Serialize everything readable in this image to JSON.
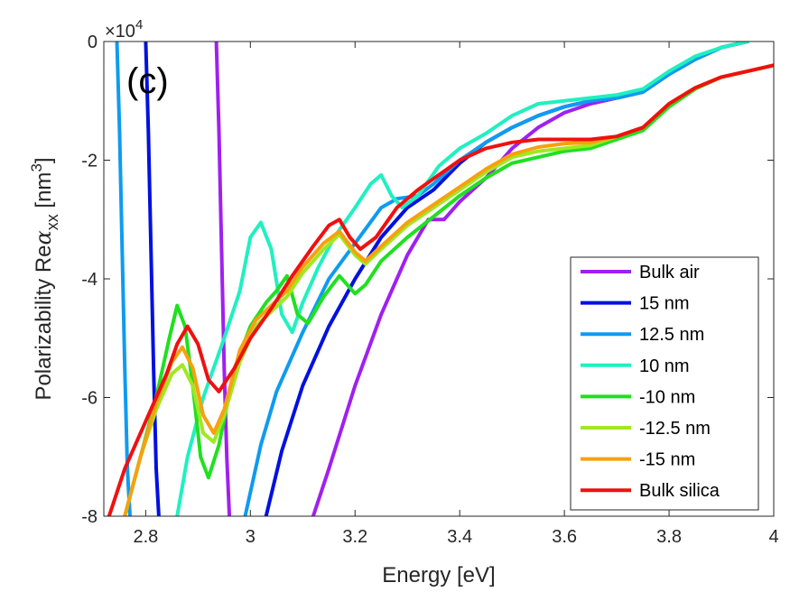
{
  "chart_data": {
    "type": "line",
    "panel_label": "(c)",
    "xlabel": "Energy [eV]",
    "ylabel_prefix": "Polarizability Re",
    "ylabel_symbol": "α",
    "ylabel_subscript": "xx",
    "ylabel_unit_open": " [nm",
    "ylabel_unit_power": "3",
    "ylabel_unit_close": "]",
    "y_exponent_base": "×10",
    "y_exponent_power": "4",
    "xlim": [
      2.72,
      4.0
    ],
    "ylim": [
      -8,
      0
    ],
    "x_ticks": [
      2.8,
      3.0,
      3.2,
      3.4,
      3.6,
      3.8,
      4.0
    ],
    "x_tick_labels": [
      "2.8",
      "3",
      "3.2",
      "3.4",
      "3.6",
      "3.8",
      "4"
    ],
    "y_ticks": [
      0,
      -2,
      -4,
      -6,
      -8
    ],
    "y_tick_labels": [
      "0",
      "-2",
      "-4",
      "-6",
      "-8"
    ],
    "y_scale_note": "values in units of 10^4 nm^3",
    "legend_position": "bottom-right",
    "series": [
      {
        "name": "Bulk air",
        "color": "#A020F0",
        "segments": [
          [
            [
              2.935,
              0.0
            ],
            [
              2.94,
              -1.5
            ],
            [
              2.945,
              -3.5
            ],
            [
              2.95,
              -5.5
            ],
            [
              2.955,
              -7.0
            ],
            [
              2.96,
              -8.0
            ]
          ],
          [
            [
              3.12,
              -8.0
            ],
            [
              3.15,
              -7.2
            ],
            [
              3.2,
              -5.8
            ],
            [
              3.25,
              -4.6
            ],
            [
              3.3,
              -3.6
            ],
            [
              3.34,
              -3.0
            ],
            [
              3.37,
              -3.0
            ],
            [
              3.4,
              -2.7
            ],
            [
              3.45,
              -2.3
            ],
            [
              3.5,
              -1.8
            ],
            [
              3.55,
              -1.45
            ],
            [
              3.6,
              -1.2
            ],
            [
              3.65,
              -1.05
            ],
            [
              3.7,
              -0.95
            ],
            [
              3.75,
              -0.85
            ],
            [
              3.8,
              -0.55
            ],
            [
              3.85,
              -0.3
            ],
            [
              3.9,
              -0.1
            ],
            [
              3.95,
              0.0
            ]
          ]
        ]
      },
      {
        "name": "15 nm",
        "color": "#0010E0",
        "segments": [
          [
            [
              2.8,
              0.0
            ],
            [
              2.805,
              -1.5
            ],
            [
              2.81,
              -3.5
            ],
            [
              2.815,
              -5.5
            ],
            [
              2.82,
              -7.2
            ],
            [
              2.825,
              -8.0
            ]
          ],
          [
            [
              3.03,
              -8.0
            ],
            [
              3.06,
              -6.9
            ],
            [
              3.1,
              -5.8
            ],
            [
              3.15,
              -4.8
            ],
            [
              3.2,
              -4.0
            ],
            [
              3.25,
              -3.3
            ],
            [
              3.3,
              -2.8
            ],
            [
              3.35,
              -2.5
            ],
            [
              3.4,
              -2.05
            ],
            [
              3.45,
              -1.7
            ],
            [
              3.5,
              -1.45
            ],
            [
              3.55,
              -1.25
            ],
            [
              3.6,
              -1.1
            ],
            [
              3.65,
              -1.0
            ],
            [
              3.7,
              -0.95
            ],
            [
              3.75,
              -0.85
            ],
            [
              3.8,
              -0.55
            ],
            [
              3.85,
              -0.3
            ],
            [
              3.9,
              -0.1
            ],
            [
              3.95,
              0.0
            ]
          ]
        ]
      },
      {
        "name": "12.5 nm",
        "color": "#0F9BF0",
        "segments": [
          [
            [
              2.745,
              0.0
            ],
            [
              2.75,
              -1.5
            ],
            [
              2.755,
              -3.5
            ],
            [
              2.76,
              -5.5
            ],
            [
              2.765,
              -7.2
            ],
            [
              2.77,
              -8.0
            ]
          ],
          [
            [
              2.99,
              -8.0
            ],
            [
              3.02,
              -6.8
            ],
            [
              3.05,
              -5.9
            ],
            [
              3.1,
              -4.9
            ],
            [
              3.15,
              -4.0
            ],
            [
              3.2,
              -3.4
            ],
            [
              3.25,
              -2.8
            ],
            [
              3.28,
              -2.65
            ],
            [
              3.32,
              -2.6
            ],
            [
              3.35,
              -2.4
            ],
            [
              3.4,
              -2.0
            ],
            [
              3.45,
              -1.7
            ],
            [
              3.5,
              -1.45
            ],
            [
              3.55,
              -1.25
            ],
            [
              3.6,
              -1.1
            ],
            [
              3.65,
              -1.0
            ],
            [
              3.7,
              -0.95
            ],
            [
              3.75,
              -0.85
            ],
            [
              3.8,
              -0.55
            ],
            [
              3.85,
              -0.3
            ],
            [
              3.9,
              -0.1
            ],
            [
              3.95,
              0.0
            ]
          ]
        ]
      },
      {
        "name": "10 nm",
        "color": "#20F0C0",
        "segments": [
          [
            [
              2.86,
              -8.0
            ],
            [
              2.88,
              -7.0
            ],
            [
              2.91,
              -6.0
            ],
            [
              2.95,
              -5.0
            ],
            [
              2.98,
              -4.2
            ],
            [
              3.0,
              -3.3
            ],
            [
              3.02,
              -3.05
            ],
            [
              3.04,
              -3.5
            ],
            [
              3.06,
              -4.6
            ],
            [
              3.08,
              -4.9
            ],
            [
              3.1,
              -4.4
            ],
            [
              3.13,
              -3.8
            ],
            [
              3.16,
              -3.3
            ],
            [
              3.2,
              -2.8
            ],
            [
              3.23,
              -2.4
            ],
            [
              3.25,
              -2.25
            ],
            [
              3.27,
              -2.6
            ],
            [
              3.29,
              -2.8
            ],
            [
              3.32,
              -2.6
            ],
            [
              3.36,
              -2.1
            ],
            [
              3.4,
              -1.8
            ],
            [
              3.45,
              -1.55
            ],
            [
              3.5,
              -1.25
            ],
            [
              3.55,
              -1.05
            ],
            [
              3.6,
              -1.0
            ],
            [
              3.65,
              -0.95
            ],
            [
              3.7,
              -0.9
            ],
            [
              3.75,
              -0.8
            ],
            [
              3.8,
              -0.5
            ],
            [
              3.85,
              -0.25
            ],
            [
              3.9,
              -0.1
            ],
            [
              3.95,
              0.0
            ]
          ]
        ]
      },
      {
        "name": "-10 nm",
        "color": "#20E020",
        "segments": [
          [
            [
              2.76,
              -8.0
            ],
            [
              2.79,
              -7.0
            ],
            [
              2.82,
              -6.0
            ],
            [
              2.845,
              -5.0
            ],
            [
              2.86,
              -4.45
            ],
            [
              2.875,
              -4.8
            ],
            [
              2.89,
              -5.8
            ],
            [
              2.905,
              -7.0
            ],
            [
              2.92,
              -7.35
            ],
            [
              2.94,
              -6.8
            ],
            [
              2.97,
              -5.5
            ],
            [
              3.0,
              -4.8
            ],
            [
              3.03,
              -4.4
            ],
            [
              3.05,
              -4.2
            ],
            [
              3.07,
              -3.95
            ],
            [
              3.09,
              -4.6
            ],
            [
              3.11,
              -4.75
            ],
            [
              3.14,
              -4.3
            ],
            [
              3.17,
              -3.95
            ],
            [
              3.2,
              -4.25
            ],
            [
              3.22,
              -4.1
            ],
            [
              3.25,
              -3.7
            ],
            [
              3.3,
              -3.3
            ],
            [
              3.35,
              -2.95
            ],
            [
              3.4,
              -2.6
            ],
            [
              3.45,
              -2.3
            ],
            [
              3.5,
              -2.05
            ],
            [
              3.55,
              -1.95
            ],
            [
              3.6,
              -1.85
            ],
            [
              3.65,
              -1.8
            ],
            [
              3.7,
              -1.65
            ],
            [
              3.75,
              -1.5
            ],
            [
              3.8,
              -1.1
            ],
            [
              3.85,
              -0.8
            ],
            [
              3.9,
              -0.6
            ],
            [
              3.95,
              -0.5
            ],
            [
              4.0,
              -0.4
            ]
          ]
        ]
      },
      {
        "name": "-12.5 nm",
        "color": "#A0E820",
        "segments": [
          [
            [
              2.76,
              -8.0
            ],
            [
              2.79,
              -7.0
            ],
            [
              2.82,
              -6.2
            ],
            [
              2.85,
              -5.6
            ],
            [
              2.87,
              -5.45
            ],
            [
              2.89,
              -5.8
            ],
            [
              2.91,
              -6.6
            ],
            [
              2.93,
              -6.75
            ],
            [
              2.95,
              -6.3
            ],
            [
              2.98,
              -5.4
            ],
            [
              3.01,
              -4.8
            ],
            [
              3.04,
              -4.55
            ],
            [
              3.07,
              -4.3
            ],
            [
              3.1,
              -3.9
            ],
            [
              3.14,
              -3.5
            ],
            [
              3.17,
              -3.25
            ],
            [
              3.2,
              -3.6
            ],
            [
              3.22,
              -3.75
            ],
            [
              3.25,
              -3.5
            ],
            [
              3.3,
              -3.1
            ],
            [
              3.35,
              -2.8
            ],
            [
              3.4,
              -2.5
            ],
            [
              3.45,
              -2.2
            ],
            [
              3.5,
              -1.95
            ],
            [
              3.55,
              -1.85
            ],
            [
              3.6,
              -1.8
            ],
            [
              3.65,
              -1.75
            ],
            [
              3.7,
              -1.6
            ],
            [
              3.75,
              -1.45
            ],
            [
              3.8,
              -1.05
            ],
            [
              3.85,
              -0.78
            ],
            [
              3.9,
              -0.6
            ],
            [
              3.95,
              -0.5
            ],
            [
              4.0,
              -0.4
            ]
          ]
        ]
      },
      {
        "name": "-15 nm",
        "color": "#F8A010",
        "segments": [
          [
            [
              2.76,
              -8.0
            ],
            [
              2.79,
              -7.0
            ],
            [
              2.82,
              -6.1
            ],
            [
              2.85,
              -5.4
            ],
            [
              2.87,
              -5.15
            ],
            [
              2.89,
              -5.5
            ],
            [
              2.91,
              -6.3
            ],
            [
              2.93,
              -6.6
            ],
            [
              2.95,
              -6.2
            ],
            [
              2.98,
              -5.2
            ],
            [
              3.01,
              -4.7
            ],
            [
              3.04,
              -4.45
            ],
            [
              3.07,
              -4.2
            ],
            [
              3.1,
              -3.8
            ],
            [
              3.14,
              -3.4
            ],
            [
              3.17,
              -3.2
            ],
            [
              3.2,
              -3.55
            ],
            [
              3.22,
              -3.7
            ],
            [
              3.25,
              -3.45
            ],
            [
              3.3,
              -3.05
            ],
            [
              3.35,
              -2.75
            ],
            [
              3.4,
              -2.45
            ],
            [
              3.45,
              -2.15
            ],
            [
              3.5,
              -1.9
            ],
            [
              3.55,
              -1.78
            ],
            [
              3.6,
              -1.72
            ],
            [
              3.65,
              -1.7
            ],
            [
              3.7,
              -1.6
            ],
            [
              3.75,
              -1.45
            ],
            [
              3.8,
              -1.05
            ],
            [
              3.85,
              -0.78
            ],
            [
              3.9,
              -0.6
            ],
            [
              3.95,
              -0.5
            ],
            [
              4.0,
              -0.4
            ]
          ]
        ]
      },
      {
        "name": "Bulk silica",
        "color": "#F01010",
        "segments": [
          [
            [
              2.73,
              -8.0
            ],
            [
              2.76,
              -7.2
            ],
            [
              2.8,
              -6.4
            ],
            [
              2.84,
              -5.6
            ],
            [
              2.86,
              -5.1
            ],
            [
              2.88,
              -4.8
            ],
            [
              2.9,
              -5.1
            ],
            [
              2.92,
              -5.7
            ],
            [
              2.94,
              -5.9
            ],
            [
              2.97,
              -5.5
            ],
            [
              3.0,
              -5.0
            ],
            [
              3.04,
              -4.5
            ],
            [
              3.08,
              -3.95
            ],
            [
              3.12,
              -3.45
            ],
            [
              3.15,
              -3.1
            ],
            [
              3.17,
              -3.0
            ],
            [
              3.19,
              -3.3
            ],
            [
              3.21,
              -3.5
            ],
            [
              3.24,
              -3.3
            ],
            [
              3.28,
              -2.8
            ],
            [
              3.32,
              -2.5
            ],
            [
              3.36,
              -2.25
            ],
            [
              3.4,
              -2.0
            ],
            [
              3.45,
              -1.8
            ],
            [
              3.5,
              -1.7
            ],
            [
              3.55,
              -1.65
            ],
            [
              3.6,
              -1.65
            ],
            [
              3.65,
              -1.65
            ],
            [
              3.7,
              -1.6
            ],
            [
              3.75,
              -1.45
            ],
            [
              3.8,
              -1.05
            ],
            [
              3.85,
              -0.78
            ],
            [
              3.9,
              -0.6
            ],
            [
              3.95,
              -0.5
            ],
            [
              4.0,
              -0.4
            ]
          ]
        ]
      }
    ]
  }
}
